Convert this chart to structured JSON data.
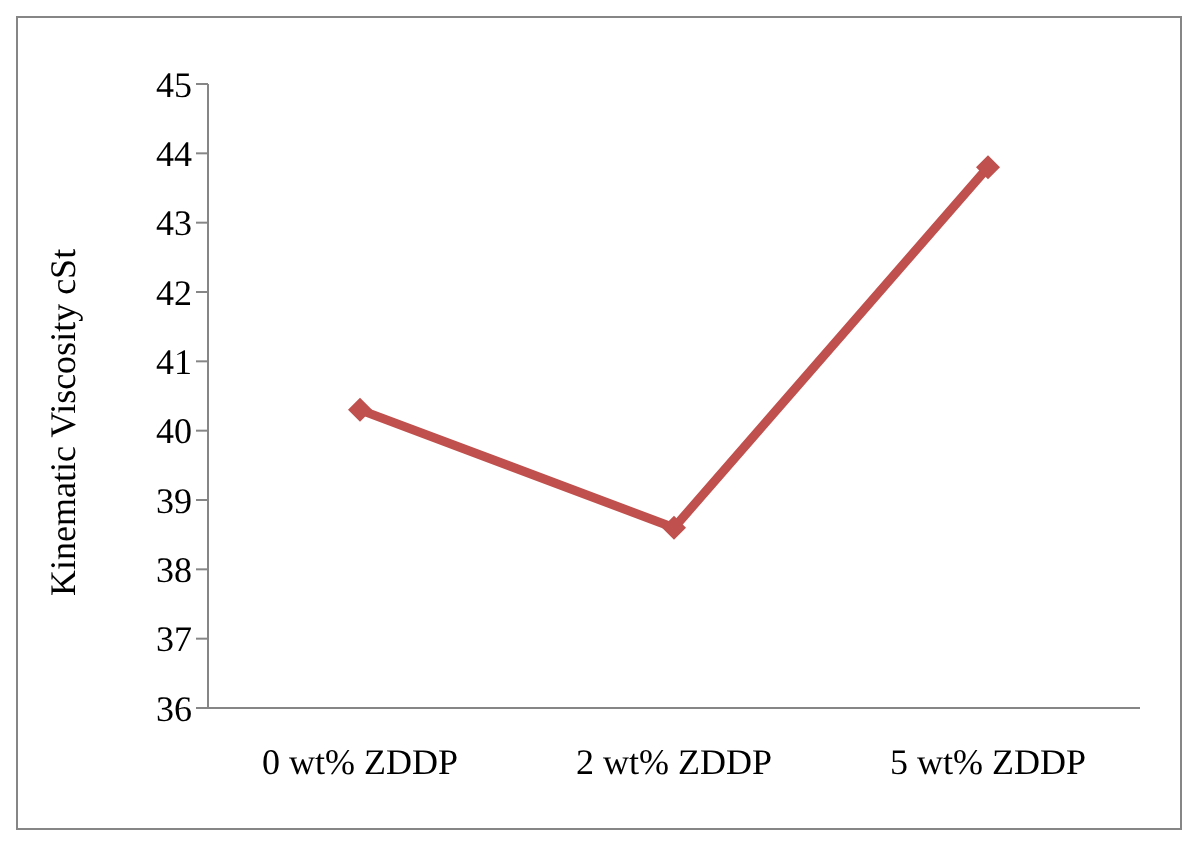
{
  "chart_data": {
    "type": "line",
    "ylabel": "Kinematic Viscosity cSt",
    "categories": [
      "0 wt% ZDDP",
      "2 wt% ZDDP",
      "5 wt% ZDDP"
    ],
    "series": [
      {
        "color": "#c0504d",
        "values": [
          40.3,
          38.6,
          43.8
        ]
      }
    ],
    "ylim": [
      36,
      45
    ],
    "yticks": [
      36,
      37,
      38,
      39,
      40,
      41,
      42,
      43,
      44,
      45
    ],
    "grid": false,
    "legend": false,
    "marker": "diamond",
    "line_style": "solid"
  }
}
